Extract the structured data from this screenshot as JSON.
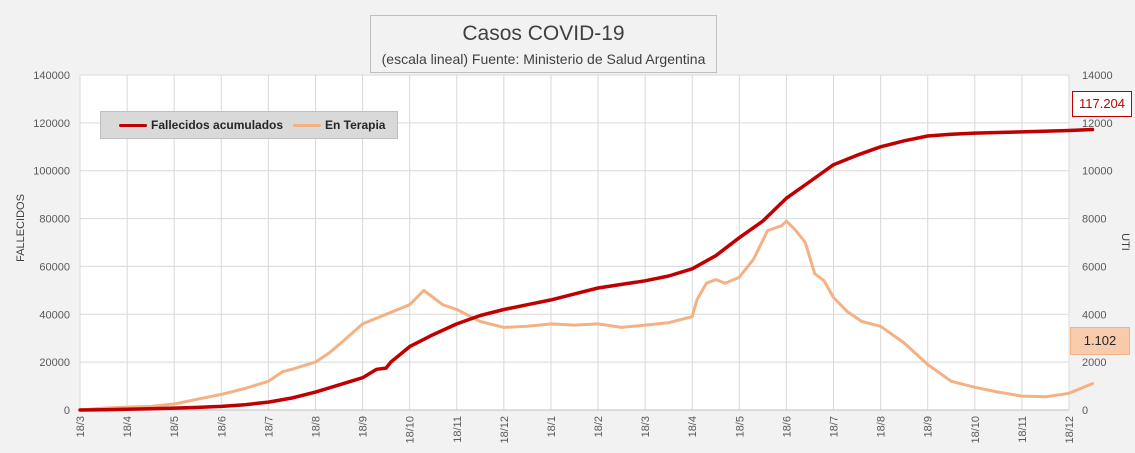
{
  "chart_data": {
    "type": "line",
    "title": "Casos COVID-19",
    "subtitle": "(escala lineal) Fuente: Ministerio de Salud Argentina",
    "ylabel": "FALLECIDOS",
    "y2label": "UTI",
    "ylim": [
      0,
      140000
    ],
    "y2lim": [
      0,
      14000
    ],
    "yticks": [
      "0",
      "20000",
      "40000",
      "60000",
      "80000",
      "100000",
      "120000",
      "140000"
    ],
    "y2ticks": [
      "0",
      "2000",
      "4000",
      "6000",
      "8000",
      "10000",
      "12000",
      "14000"
    ],
    "x_categories": [
      "18/3",
      "18/4",
      "18/5",
      "18/6",
      "18/7",
      "18/8",
      "18/9",
      "18/10",
      "18/11",
      "18/12",
      "18/1",
      "18/2",
      "18/3",
      "18/4",
      "18/5",
      "18/6",
      "18/7",
      "18/8",
      "18/9",
      "18/10",
      "18/11",
      "18/12"
    ],
    "grid": true,
    "legend": "top-left",
    "series": [
      {
        "name": "Fallecidos acumulados",
        "axis": "left",
        "color": "#c00000",
        "x": [
          0,
          0.5,
          1,
          1.5,
          2,
          2.5,
          3,
          3.5,
          4,
          4.5,
          5,
          5.5,
          6,
          6.3,
          6.5,
          6.6,
          7,
          7.5,
          8,
          8.5,
          9,
          9.5,
          10,
          10.5,
          11,
          11.5,
          12,
          12.5,
          13,
          13.5,
          14,
          14.5,
          15,
          15.5,
          16,
          16.5,
          17,
          17.5,
          18,
          18.5,
          19,
          20,
          21,
          21.5
        ],
        "values": [
          0,
          100,
          300,
          500,
          800,
          1100,
          1500,
          2200,
          3300,
          5000,
          7500,
          10500,
          13500,
          17000,
          17500,
          20000,
          26500,
          31500,
          36000,
          39500,
          42000,
          44000,
          46000,
          48500,
          51000,
          52500,
          54000,
          56000,
          59000,
          64500,
          72000,
          79000,
          88500,
          95500,
          102500,
          106500,
          110000,
          112500,
          114500,
          115200,
          115700,
          116200,
          116800,
          117204
        ]
      },
      {
        "name": "En Terapia",
        "axis": "right",
        "color": "#f4b183",
        "x": [
          0,
          0.5,
          1,
          1.5,
          2,
          2.5,
          3,
          3.5,
          4,
          4.3,
          4.5,
          5,
          5.3,
          5.6,
          6,
          6.5,
          7,
          7.3,
          7.5,
          7.7,
          8,
          8.5,
          9,
          9.5,
          10,
          10.5,
          11,
          11.5,
          12,
          12.5,
          13,
          13.1,
          13.3,
          13.5,
          13.7,
          14,
          14.3,
          14.6,
          14.9,
          15,
          15.2,
          15.4,
          15.6,
          15.8,
          16,
          16.3,
          16.6,
          17,
          17.5,
          18,
          18.5,
          19,
          19.5,
          20,
          20.5,
          21,
          21.5
        ],
        "values": [
          0,
          80,
          120,
          150,
          250,
          450,
          650,
          900,
          1200,
          1600,
          1700,
          2000,
          2400,
          2900,
          3600,
          4000,
          4400,
          5000,
          4700,
          4400,
          4200,
          3700,
          3450,
          3500,
          3600,
          3550,
          3600,
          3450,
          3550,
          3650,
          3900,
          4600,
          5300,
          5450,
          5300,
          5550,
          6300,
          7500,
          7700,
          7900,
          7500,
          7000,
          5700,
          5400,
          4700,
          4100,
          3700,
          3500,
          2800,
          1900,
          1200,
          950,
          750,
          580,
          550,
          700,
          1102
        ]
      }
    ],
    "labels": {
      "last_fallecidos": "117.204",
      "last_terapia": "1.102"
    }
  }
}
